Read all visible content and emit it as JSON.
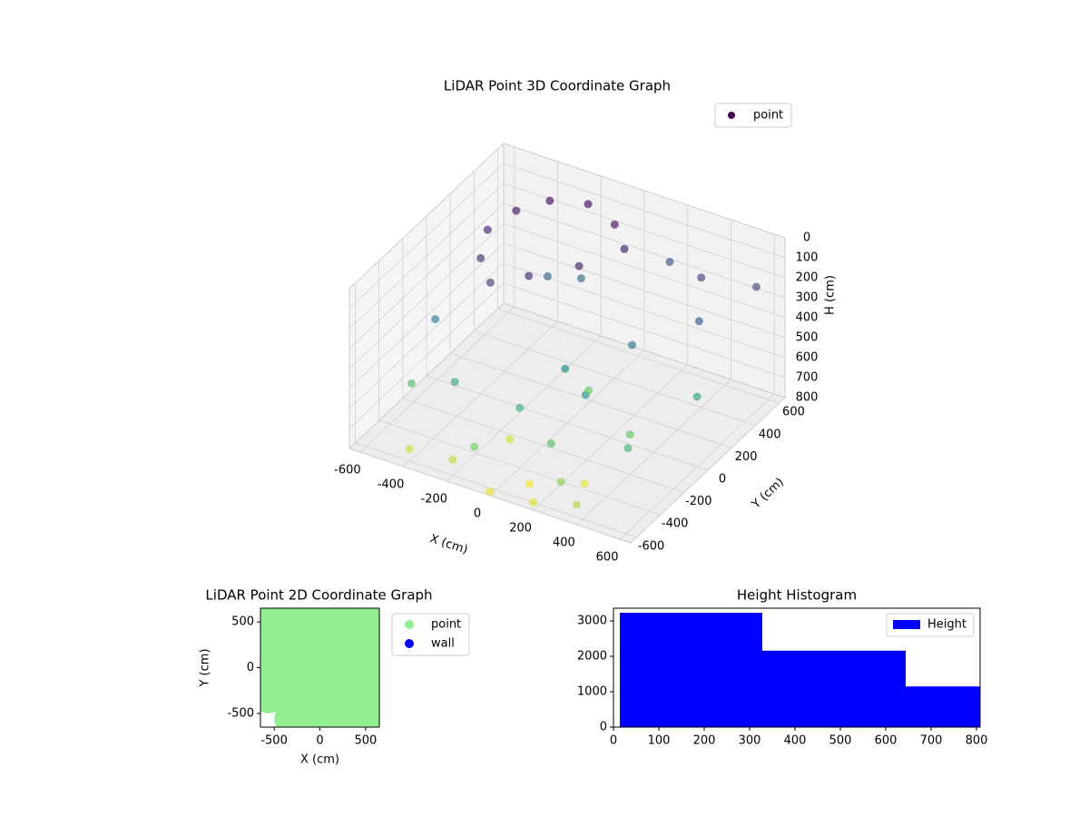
{
  "chart_data": [
    {
      "type": "scatter3d",
      "title": "LiDAR Point 3D Coordinate Graph",
      "xlabel": "X (cm)",
      "ylabel": "Y (cm)",
      "zlabel": "H (cm)",
      "xlim": [
        -650,
        650
      ],
      "ylim": [
        -650,
        650
      ],
      "zlim": [
        0,
        800
      ],
      "zinvert": true,
      "colormap": "viridis",
      "legend": "upper right",
      "xticks": [
        -600,
        -400,
        -200,
        0,
        200,
        400,
        600
      ],
      "yticks": [
        -600,
        -400,
        -200,
        0,
        200,
        400,
        600
      ],
      "zticks": [
        0,
        100,
        200,
        300,
        400,
        500,
        600,
        700,
        800
      ],
      "series": [
        {
          "name": "point",
          "x": [
            -400,
            -300,
            -150,
            0,
            100,
            -450,
            -400,
            -300,
            -150,
            0,
            -200,
            200,
            400,
            500,
            300,
            -500,
            100,
            250,
            600,
            -100,
            0,
            200,
            -300,
            400,
            -100,
            500,
            300,
            -500,
            600,
            100,
            -200,
            0,
            200,
            -400,
            400,
            100,
            -100,
            300
          ],
          "y": [
            300,
            400,
            450,
            400,
            300,
            150,
            0,
            -100,
            -50,
            100,
            200,
            500,
            400,
            200,
            0,
            -200,
            -200,
            -300,
            500,
            300,
            -400,
            -500,
            -400,
            -200,
            -600,
            -400,
            -600,
            -400,
            0,
            0,
            -600,
            -650,
            -650,
            -600,
            -650,
            -500,
            -300,
            -400
          ],
          "z": [
            50,
            20,
            10,
            30,
            60,
            80,
            120,
            150,
            90,
            70,
            250,
            200,
            150,
            220,
            300,
            350,
            380,
            400,
            180,
            280,
            500,
            550,
            480,
            600,
            620,
            520,
            650,
            560,
            450,
            600,
            720,
            780,
            760,
            740,
            700,
            790,
            750,
            770
          ]
        }
      ]
    },
    {
      "type": "scatter",
      "title": "LiDAR Point 2D Coordinate Graph",
      "xlabel": "X (cm)",
      "ylabel": "Y (cm)",
      "xlim": [
        -650,
        650
      ],
      "ylim": [
        -650,
        650
      ],
      "xticks": [
        -500,
        0,
        500
      ],
      "yticks": [
        -500,
        0,
        500
      ],
      "legend": "outside right",
      "series": [
        {
          "name": "point",
          "color": "#90ee90",
          "x": [
            -330,
            -100,
            130,
            360,
            590,
            -560,
            -330,
            -100,
            130,
            360,
            590,
            -560,
            -330,
            -100,
            130,
            360,
            590,
            -560,
            -330,
            -100,
            130,
            360,
            590,
            -560,
            -330,
            -100,
            130,
            360,
            590,
            -560,
            -330,
            -100,
            130,
            360,
            590
          ],
          "y": [
            -560,
            -560,
            -560,
            -560,
            -560,
            -330,
            -330,
            -330,
            -330,
            -330,
            -330,
            -100,
            -100,
            -100,
            -100,
            -100,
            -100,
            130,
            130,
            130,
            130,
            130,
            130,
            360,
            360,
            360,
            360,
            360,
            360,
            590,
            590,
            590,
            590,
            590,
            590
          ]
        },
        {
          "name": "wall",
          "color": "#0000ff",
          "x": [],
          "y": []
        }
      ]
    },
    {
      "type": "histogram",
      "title": "Height Histogram",
      "name": "Height",
      "color": "#0000ff",
      "bins": [
        14,
        328,
        644,
        808
      ],
      "counts": [
        3230,
        2160,
        1150
      ],
      "xlim": [
        0,
        808
      ],
      "ylim": [
        0,
        3360
      ],
      "xticks": [
        0,
        100,
        200,
        300,
        400,
        500,
        600,
        700,
        800
      ],
      "yticks": [
        0,
        1000,
        2000,
        3000
      ],
      "legend": "upper right"
    }
  ]
}
